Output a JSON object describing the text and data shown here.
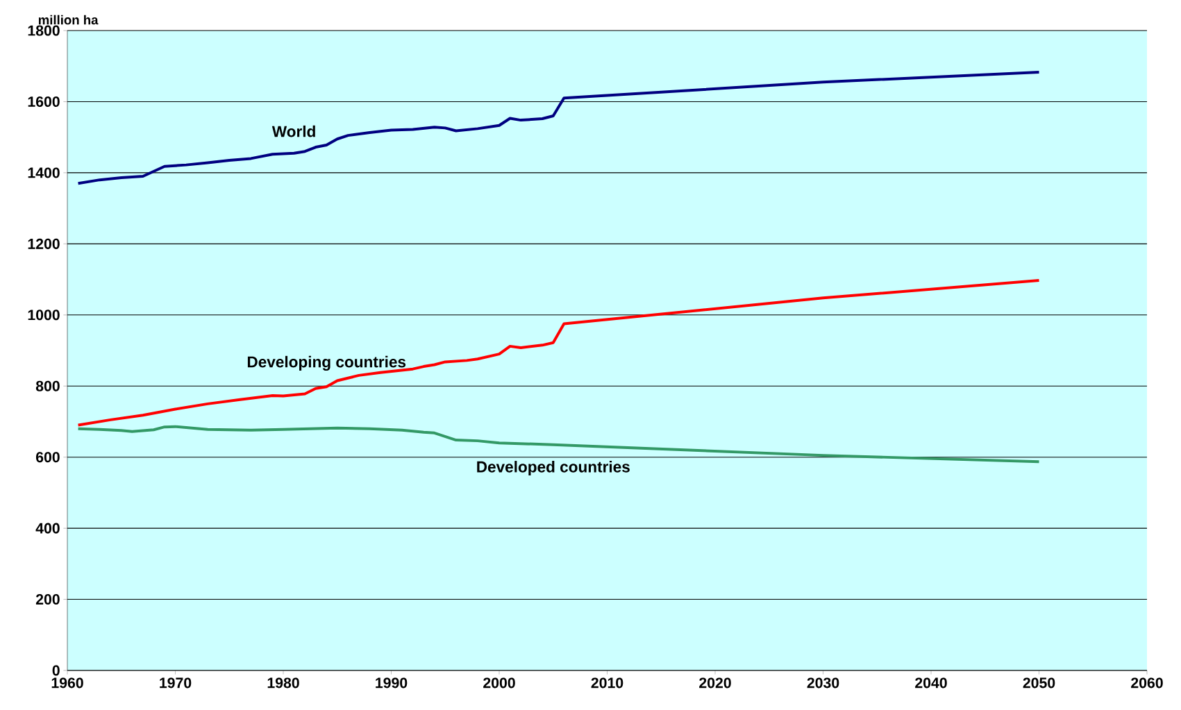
{
  "chart_data": {
    "type": "line",
    "ylabel": "million ha",
    "xlim": [
      1960,
      2060
    ],
    "xticks": [
      1960,
      1970,
      1980,
      1990,
      2000,
      2010,
      2020,
      2030,
      2040,
      2050,
      2060
    ],
    "ylim": [
      0,
      1800
    ],
    "yticks": [
      0,
      200,
      400,
      600,
      800,
      1000,
      1200,
      1400,
      1600,
      1800
    ],
    "grid": "y",
    "legend": false,
    "marker": "none",
    "line_style": "solid",
    "series": [
      {
        "name": "World",
        "color": "#000080",
        "x": [
          1961,
          1963,
          1965,
          1967,
          1969,
          1971,
          1973,
          1975,
          1977,
          1979,
          1981,
          1982,
          1983,
          1984,
          1985,
          1986,
          1988,
          1990,
          1992,
          1994,
          1995,
          1996,
          1998,
          2000,
          2001,
          2002,
          2004,
          2005,
          2006,
          2030,
          2050
        ],
        "values": [
          1370,
          1380,
          1386,
          1390,
          1418,
          1422,
          1428,
          1435,
          1440,
          1452,
          1455,
          1460,
          1472,
          1478,
          1495,
          1505,
          1513,
          1520,
          1522,
          1528,
          1526,
          1518,
          1524,
          1533,
          1553,
          1548,
          1552,
          1560,
          1610,
          1655,
          1683
        ]
      },
      {
        "name": "Developing countries",
        "color": "#ff0000",
        "x": [
          1961,
          1964,
          1967,
          1970,
          1973,
          1976,
          1979,
          1980,
          1982,
          1983,
          1984,
          1985,
          1987,
          1989,
          1992,
          1993,
          1994,
          1995,
          1997,
          1998,
          2000,
          2001,
          2002,
          2004,
          2005,
          2006,
          2030,
          2050
        ],
        "values": [
          690,
          705,
          718,
          735,
          750,
          762,
          773,
          772,
          778,
          793,
          798,
          815,
          830,
          838,
          848,
          855,
          860,
          868,
          872,
          876,
          890,
          912,
          908,
          915,
          922,
          975,
          1048,
          1097
        ]
      },
      {
        "name": "Developed countries",
        "color": "#339966",
        "x": [
          1961,
          1963,
          1965,
          1966,
          1968,
          1969,
          1970,
          1973,
          1977,
          1980,
          1985,
          1988,
          1991,
          1993,
          1994,
          1996,
          1998,
          2000,
          2005,
          2030,
          2050
        ],
        "values": [
          680,
          678,
          675,
          672,
          677,
          685,
          686,
          678,
          676,
          678,
          682,
          680,
          676,
          670,
          668,
          648,
          646,
          640,
          635,
          605,
          587
        ]
      }
    ]
  }
}
